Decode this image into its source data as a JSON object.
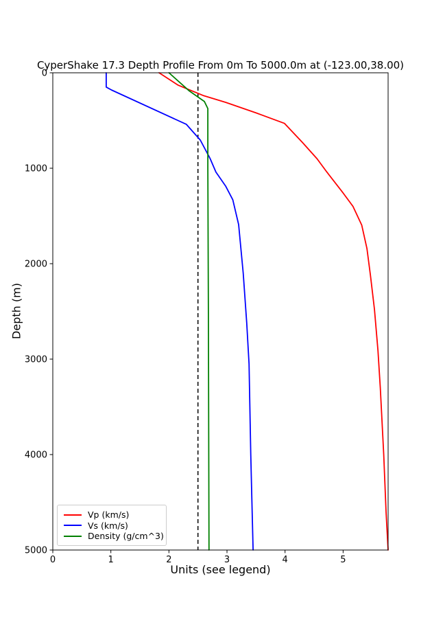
{
  "chart_data": {
    "type": "line",
    "title": "CyperShake 17.3 Depth Profile From 0m To 5000.0m at (-123.00,38.00)",
    "xlabel": "Units (see legend)",
    "ylabel": "Depth (m)",
    "xlim": [
      0,
      5.775
    ],
    "ylim": [
      0,
      5000
    ],
    "y_axis_inverted": true,
    "x_ticks": [
      0,
      1,
      2,
      3,
      4,
      5
    ],
    "y_ticks": [
      0,
      1000,
      2000,
      3000,
      4000,
      5000
    ],
    "grid": false,
    "legend_position": "lower-left",
    "series": [
      {
        "key": "vp",
        "name": "Vp (km/s)",
        "color": "#ff0000",
        "points_value_depth": [
          [
            1.83,
            0
          ],
          [
            2.16,
            130
          ],
          [
            2.6,
            240
          ],
          [
            2.98,
            310
          ],
          [
            3.5,
            420
          ],
          [
            3.99,
            530
          ],
          [
            4.3,
            730
          ],
          [
            4.55,
            900
          ],
          [
            4.72,
            1040
          ],
          [
            5.0,
            1260
          ],
          [
            5.17,
            1400
          ],
          [
            5.32,
            1595
          ],
          [
            5.41,
            1840
          ],
          [
            5.47,
            2120
          ],
          [
            5.54,
            2480
          ],
          [
            5.6,
            2910
          ],
          [
            5.64,
            3300
          ],
          [
            5.7,
            4000
          ],
          [
            5.74,
            4600
          ],
          [
            5.775,
            5000
          ]
        ]
      },
      {
        "key": "vs",
        "name": "Vs (km/s)",
        "color": "#0000ff",
        "points_value_depth": [
          [
            0.92,
            0
          ],
          [
            0.92,
            150
          ],
          [
            1.01,
            180
          ],
          [
            2.3,
            540
          ],
          [
            2.54,
            705
          ],
          [
            2.71,
            900
          ],
          [
            2.81,
            1040
          ],
          [
            2.98,
            1190
          ],
          [
            3.1,
            1330
          ],
          [
            3.2,
            1590
          ],
          [
            3.28,
            2100
          ],
          [
            3.34,
            2620
          ],
          [
            3.38,
            3050
          ],
          [
            3.41,
            4000
          ],
          [
            3.43,
            4500
          ],
          [
            3.45,
            5000
          ]
        ]
      },
      {
        "key": "density",
        "name": "Density (g/cm^3)",
        "color": "#008000",
        "points_value_depth": [
          [
            2.0,
            0
          ],
          [
            2.35,
            190
          ],
          [
            2.61,
            300
          ],
          [
            2.67,
            375
          ],
          [
            2.67,
            1000
          ],
          [
            2.68,
            2500
          ],
          [
            2.69,
            5000
          ]
        ]
      }
    ],
    "reference_line": {
      "x": 2.5,
      "color": "#000000",
      "style": "dashed"
    }
  }
}
